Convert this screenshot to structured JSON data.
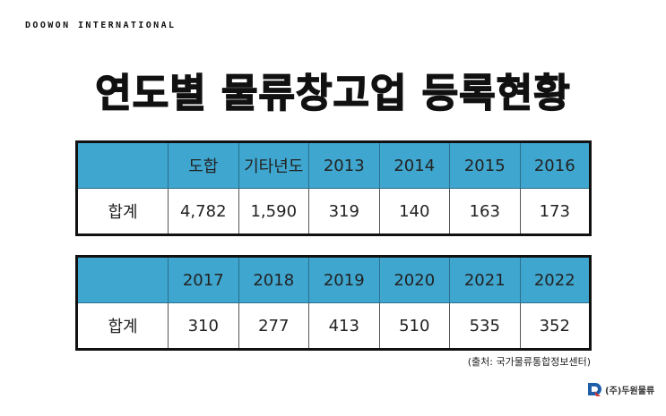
{
  "header": {
    "brand": "DOOWON INTERNATIONAL",
    "title": "연도별 물류창고업 등록현황"
  },
  "tables": [
    {
      "headers": [
        "도합",
        "기타년도",
        "2013",
        "2014",
        "2015",
        "2016"
      ],
      "row_label": "합계",
      "values": [
        "4,782",
        "1,590",
        "319",
        "140",
        "163",
        "173"
      ]
    },
    {
      "headers": [
        "2017",
        "2018",
        "2019",
        "2020",
        "2021",
        "2022"
      ],
      "row_label": "합계",
      "values": [
        "310",
        "277",
        "413",
        "510",
        "535",
        "352"
      ]
    }
  ],
  "source": "(출처: 국가물류통합정보센터)",
  "logo": "(주)두원물류"
}
